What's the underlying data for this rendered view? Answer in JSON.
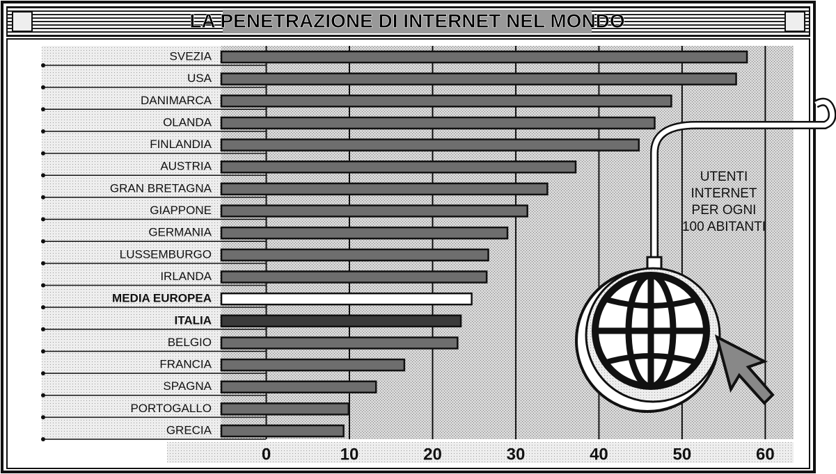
{
  "chart_data": {
    "type": "barh",
    "title": "LA PENETRAZIONE DI INTERNET NEL MONDO",
    "annotation": [
      "UTENTI",
      "INTERNET",
      "PER OGNI",
      "100 ABITANTI"
    ],
    "categories": [
      "SVEZIA",
      "USA",
      "DANIMARCA",
      "OLANDA",
      "FINLANDIA",
      "AUSTRIA",
      "GRAN BRETAGNA",
      "GIAPPONE",
      "GERMANIA",
      "LUSSEMBURGO",
      "IRLANDA",
      "MEDIA EUROPEA",
      "ITALIA",
      "BELGIO",
      "FRANCIA",
      "SPAGNA",
      "PORTOGALLO",
      "GRECIA"
    ],
    "values": [
      57.8,
      56.5,
      48.7,
      46.7,
      44.8,
      37.2,
      33.8,
      31.4,
      29.0,
      26.7,
      26.5,
      24.7,
      23.4,
      23.0,
      16.6,
      13.2,
      9.9,
      9.3
    ],
    "color": "#6e6e6e",
    "colors": [
      "#6e6e6e",
      "#6e6e6e",
      "#6e6e6e",
      "#6e6e6e",
      "#6e6e6e",
      "#6e6e6e",
      "#6e6e6e",
      "#6e6e6e",
      "#6e6e6e",
      "#6e6e6e",
      "#6e6e6e",
      "#ffffff",
      "#3a3a3a",
      "#6e6e6e",
      "#6e6e6e",
      "#6e6e6e",
      "#6e6e6e",
      "#6e6e6e"
    ],
    "xlim": [
      -5.4,
      63.4
    ],
    "xticks": [
      0,
      10,
      20,
      30,
      40,
      50,
      60
    ],
    "grid": true
  }
}
